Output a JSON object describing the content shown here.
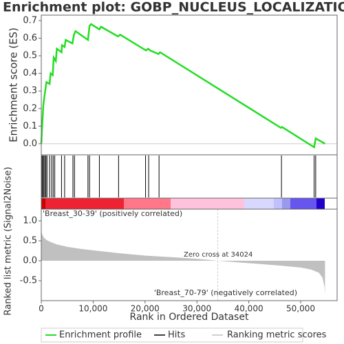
{
  "chart_data": [
    {
      "type": "line",
      "title": "Enrichment plot: GOBP_NUCLEUS_LOCALIZATION",
      "y_label": "Enrichment score (ES)",
      "x": [
        0,
        150,
        400,
        700,
        1000,
        1600,
        1800,
        2200,
        2400,
        2800,
        3000,
        3900,
        4000,
        4500,
        4700,
        6000,
        6300,
        6600,
        9000,
        9300,
        9600,
        11200,
        11500,
        14800,
        15200,
        20200,
        20600,
        21000,
        22600,
        22900,
        46200,
        46400,
        52600,
        52900,
        54700
      ],
      "series": [
        {
          "name": "Enrichment profile",
          "color": "#22dd22",
          "values": [
            0,
            0.09,
            0.22,
            0.29,
            0.35,
            0.34,
            0.4,
            0.39,
            0.49,
            0.47,
            0.54,
            0.52,
            0.56,
            0.55,
            0.59,
            0.57,
            0.62,
            0.64,
            0.59,
            0.67,
            0.68,
            0.65,
            0.665,
            0.61,
            0.62,
            0.53,
            0.54,
            0.53,
            0.51,
            0.52,
            0.09,
            0.095,
            -0.02,
            0.03,
            0.0
          ]
        }
      ],
      "xlim": [
        0,
        57030
      ],
      "ylim": [
        -0.063,
        0.731
      ],
      "yticks": [
        {
          "value": 0,
          "label": "0.0"
        },
        0.1,
        0.2,
        0.3,
        0.4,
        0.5,
        0.6,
        0.7
      ]
    },
    {
      "type": "hits",
      "series": [
        {
          "name": "Hits",
          "color": "#000000",
          "x": [
            150,
            300,
            500,
            700,
            900,
            1100,
            1600,
            2000,
            2300,
            2600,
            3900,
            4500,
            6100,
            6400,
            9000,
            9300,
            11200,
            14900,
            20100,
            20700,
            22700,
            46300,
            52600,
            52900
          ]
        }
      ],
      "xlim": [
        0,
        57030
      ]
    },
    {
      "type": "area",
      "y_label": "Ranked list metric (Signal2Noise)",
      "x_label": "Rank in Ordered Dataset",
      "x": [
        0,
        200,
        500,
        1000,
        2000,
        3000,
        5000,
        7500,
        10000,
        15000,
        20000,
        25000,
        30000,
        34024,
        38000,
        42000,
        46000,
        50000,
        52000,
        53500,
        54200,
        54600,
        54700
      ],
      "series": [
        {
          "name": "Ranking metric scores",
          "color": "#c0c0c0",
          "values": [
            0.75,
            0.65,
            0.58,
            0.52,
            0.46,
            0.41,
            0.35,
            0.3,
            0.26,
            0.19,
            0.13,
            0.09,
            0.05,
            0,
            -0.04,
            -0.08,
            -0.12,
            -0.17,
            -0.22,
            -0.3,
            -0.42,
            -0.65,
            -0.85
          ]
        }
      ],
      "zero_cross": 34024,
      "annotations": [
        {
          "text": "'Breast_30-39' (positively correlated)",
          "color": "#cc0000"
        },
        {
          "text": "Zero cross at 34024",
          "color": "#000000"
        },
        {
          "text": "'Breast_70-79' (negatively correlated)",
          "color": "#0000cc"
        }
      ],
      "xlim": [
        0,
        57030
      ],
      "ylim": [
        -1.0,
        1.293
      ],
      "xticks": [
        0,
        {
          "value": 10000,
          "label": "10,000"
        },
        {
          "value": 20000,
          "label": "20,000"
        },
        {
          "value": 30000,
          "label": "30,000"
        },
        {
          "value": 40000,
          "label": "40,000"
        },
        {
          "value": 50000,
          "label": "50,000"
        }
      ],
      "yticks": [
        {
          "value": 1,
          "label": "1.0"
        },
        {
          "value": 0.5,
          "label": "0.5"
        },
        {
          "value": 0,
          "label": "0.0"
        },
        -0.5
      ]
    }
  ]
}
